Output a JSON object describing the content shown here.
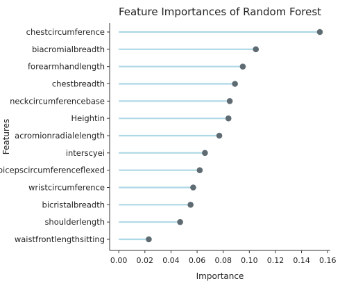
{
  "chart_data": {
    "type": "lollipop",
    "title": "Feature Importances of Random Forest",
    "xlabel": "Importance",
    "ylabel": "Features",
    "xlim": [
      -0.007,
      0.162
    ],
    "xticks": [
      0.0,
      0.02,
      0.04,
      0.06,
      0.08,
      0.1,
      0.12,
      0.14,
      0.16
    ],
    "xtick_labels": [
      "0.00",
      "0.02",
      "0.04",
      "0.06",
      "0.08",
      "0.10",
      "0.12",
      "0.14",
      "0.16"
    ],
    "grid": false,
    "categories": [
      "chestcircumference",
      "biacromialbreadth",
      "forearmhandlength",
      "chestbreadth",
      "neckcircumferencebase",
      "Heightin",
      "acromionradialelength",
      "interscyei",
      "bicepscircumferenceflexed",
      "wristcircumference",
      "bicristalbreadth",
      "shoulderlength",
      "waistfrontlengthsitting"
    ],
    "values": [
      0.154,
      0.105,
      0.095,
      0.089,
      0.085,
      0.084,
      0.077,
      0.066,
      0.062,
      0.057,
      0.055,
      0.047,
      0.023
    ],
    "colors": {
      "stem": "#add8e6",
      "marker": "#5f6b72"
    }
  }
}
